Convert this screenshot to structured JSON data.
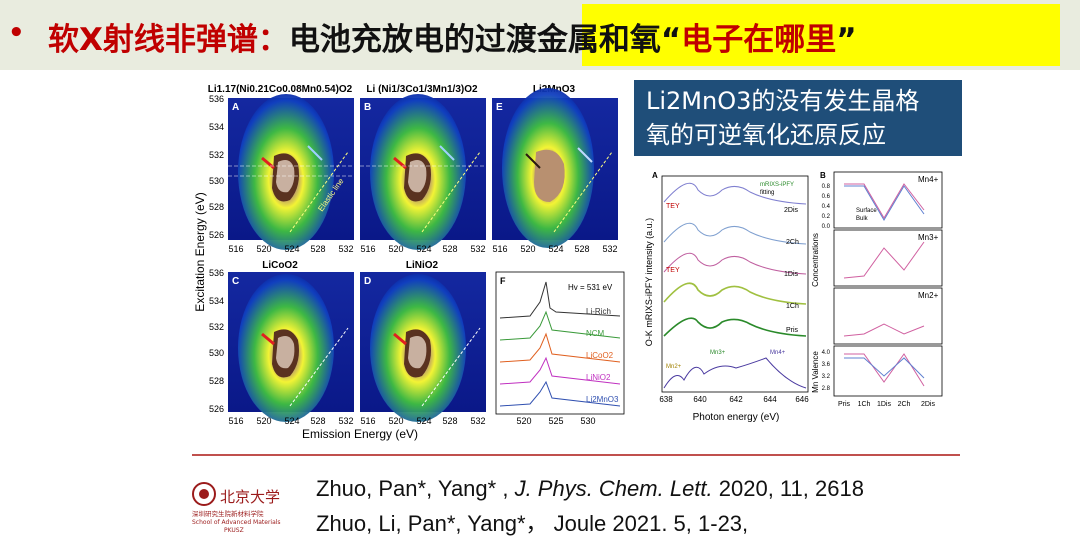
{
  "header": {
    "bullet": "•",
    "title_part1": "软X射线非弹谱：",
    "title_part2": "电池充放电的",
    "title_part3": "过渡金属和氧",
    "title_part4": "“",
    "title_part5": "电子在哪里",
    "title_part6": "”"
  },
  "callout": {
    "line1": "Li2MnO3的没有发生晶格",
    "line2": "氧的可逆氧化还原反应"
  },
  "rixs_panel": {
    "yaxis_label": "Excitation Energy (eV)",
    "xaxis_label": "Emission Energy (eV)",
    "ytick": [
      "536",
      "534",
      "532",
      "530",
      "528",
      "526"
    ],
    "xtick": [
      "516",
      "520",
      "524",
      "528",
      "532"
    ],
    "maps": [
      {
        "letter": "A",
        "title": "Li1.17(Ni0.21Co0.08Mn0.54)O2"
      },
      {
        "letter": "B",
        "title": "Li (Ni1/3Co1/3Mn1/3)O2"
      },
      {
        "letter": "E",
        "title": "Li2MnO3"
      },
      {
        "letter": "C",
        "title": "LiCoO2"
      },
      {
        "letter": "D",
        "title": "LiNiO2"
      }
    ],
    "elastic_label": "Elastic line"
  },
  "panel_f": {
    "letter": "F",
    "annotation": "Hv = 531 eV",
    "curves": [
      {
        "name": "Li-Rich",
        "color": "#333333"
      },
      {
        "name": "NCM",
        "color": "#3a9a3a"
      },
      {
        "name": "LiCoO2",
        "color": "#e06020"
      },
      {
        "name": "LiNiO2",
        "color": "#c030c0"
      },
      {
        "name": "Li2MnO3",
        "color": "#3050b0"
      }
    ],
    "xtick": [
      "520",
      "525",
      "530"
    ]
  },
  "panel_a": {
    "letter": "A",
    "ylabel": "O-K mRIXS-iPFY intensity (a.u.)",
    "xlabel": "Photon energy (eV)",
    "xtick": [
      "638",
      "640",
      "642",
      "644",
      "646"
    ],
    "legend": [
      "mRIXS-iPFY",
      "fitting"
    ],
    "labels": [
      "2Dis",
      "2Ch",
      "1Dis",
      "1Ch",
      "Pris"
    ],
    "tey": "TEY",
    "mn_labels": [
      "Mn2+",
      "Mn3+",
      "Mn4+"
    ]
  },
  "panel_b": {
    "letter": "B",
    "ylabel_conc": "Concentrations",
    "ylabel_val": "Mn Valence",
    "xcats": [
      "Pris",
      "1Ch",
      "1Dis",
      "2Ch",
      "2Dis"
    ],
    "sub_labels": [
      "Mn4+",
      "Mn3+",
      "Mn2+"
    ],
    "legend": [
      "Surface",
      "Bulk"
    ],
    "yticks_top": [
      "0.8",
      "0.6",
      "0.4",
      "0.2",
      "0.0"
    ],
    "yticks_val": [
      "4.0",
      "3.6",
      "3.2",
      "2.8"
    ]
  },
  "refs": {
    "ref1_a": "Zhuo, Pan*, Yang* , ",
    "ref1_b": "J. Phys. Chem. Lett.",
    "ref1_c": " 2020, 11, 2618",
    "ref2": "Zhuo, Li, Pan*, Yang*， Joule 2021. 5, 1-23,"
  },
  "logo": {
    "name": "北京大学",
    "sub1": "深圳研究生院新材料学院",
    "sub2": "School of Advanced Materials",
    "sub3": "PKUSZ"
  },
  "colors": {
    "accent_red": "#c00000",
    "highlight": "#ffff00",
    "callout_bg": "#1f4e79"
  }
}
